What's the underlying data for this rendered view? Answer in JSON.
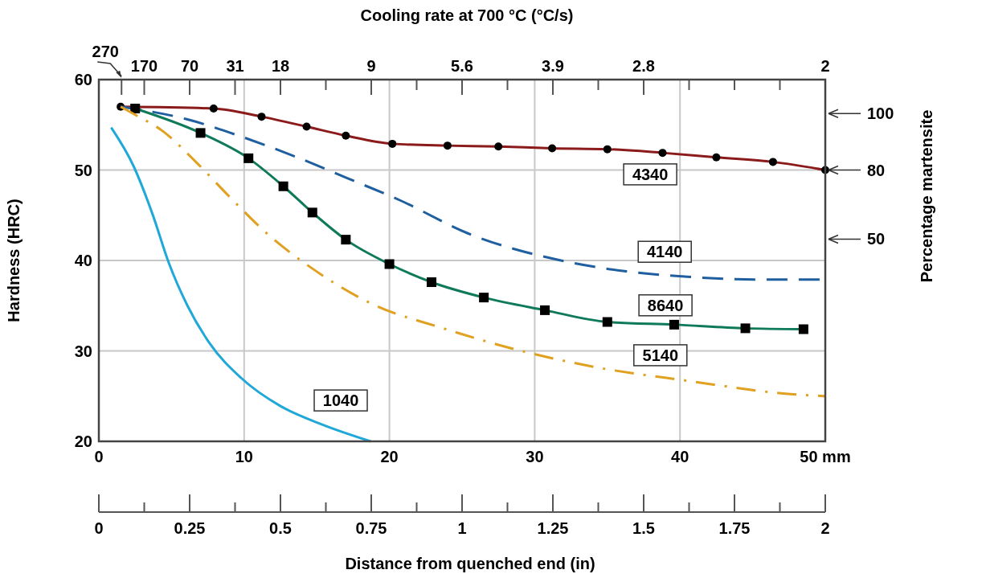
{
  "chart_data": {
    "type": "line",
    "title": "Cooling rate at 700 °C  (°C/s)",
    "ylabel": "Hardness (HRC)",
    "y2label": "Percentage martensite",
    "x2label": "Distance from quenched end  (in)",
    "xlim": [
      0,
      50
    ],
    "xticks": [
      0,
      10,
      20,
      30,
      40,
      {
        "value": 50,
        "label": "50 mm"
      }
    ],
    "ylim": [
      20,
      60
    ],
    "yticks": [
      20,
      30,
      40,
      50,
      60
    ],
    "x2lim": [
      0,
      2
    ],
    "x2ticks": [
      0,
      0.25,
      0.5,
      0.75,
      1,
      1.25,
      1.5,
      1.75,
      2
    ],
    "grid": true,
    "annotations": [
      "270",
      "170",
      "70",
      "31",
      "18",
      "9",
      "5.6",
      "3.9",
      "2.8",
      "2",
      "100",
      "80",
      "50"
    ],
    "series": [
      {
        "name": "4340",
        "color": "#8b1a1a",
        "line_style": "solid",
        "marker": "circle",
        "x": [
          1.5,
          7.9,
          11.2,
          14.3,
          17.0,
          20.2,
          24.0,
          27.5,
          31.2,
          35.0,
          38.8,
          42.5,
          46.4,
          50
        ],
        "values": [
          57,
          56.8,
          55.9,
          54.8,
          53.8,
          52.9,
          52.7,
          52.6,
          52.4,
          52.3,
          51.9,
          51.4,
          50.9,
          50
        ]
      },
      {
        "name": "4140",
        "color": "#1f5f9f",
        "line_style": "dashed",
        "marker": "none",
        "x": [
          1.5,
          6.1,
          9.8,
          13.5,
          17.1,
          20.8,
          25.4,
          31.8,
          36.3,
          40.5,
          45.1,
          50
        ],
        "values": [
          57,
          55.6,
          53.7,
          51.5,
          49.1,
          46.6,
          43.0,
          40.0,
          38.8,
          38.2,
          37.9,
          37.9
        ]
      },
      {
        "name": "8640",
        "color": "#0f7a5a",
        "line_style": "solid",
        "marker": "square",
        "x": [
          2.5,
          7.0,
          10.3,
          12.7,
          14.7,
          17.0,
          20.0,
          22.9,
          26.5,
          30.7,
          35.0,
          39.6,
          44.5,
          48.5
        ],
        "values": [
          56.8,
          54.1,
          51.3,
          48.2,
          45.3,
          42.3,
          39.6,
          37.6,
          35.9,
          34.5,
          33.2,
          32.9,
          32.5,
          32.4
        ]
      },
      {
        "name": "5140",
        "color": "#e0a020",
        "line_style": "dashdot",
        "marker": "none",
        "x": [
          1.5,
          2.4,
          4.4,
          6.8,
          8.9,
          11.7,
          14.7,
          18.8,
          23.7,
          28.6,
          34.2,
          40.5,
          47.8,
          50
        ],
        "values": [
          57,
          56.2,
          54.3,
          50.7,
          47.2,
          42.8,
          39.1,
          35.2,
          32.5,
          30.2,
          28.2,
          26.7,
          25.2,
          25
        ]
      },
      {
        "name": "1040",
        "color": "#20a8d8",
        "line_style": "solid",
        "marker": "none",
        "x": [
          0.85,
          2.4,
          3.7,
          4.8,
          6.1,
          7.6,
          9.8,
          12.5,
          15.3,
          18.7
        ],
        "values": [
          54.7,
          50.4,
          45.1,
          39.8,
          35.0,
          30.9,
          27.0,
          23.9,
          21.9,
          20
        ]
      }
    ]
  }
}
